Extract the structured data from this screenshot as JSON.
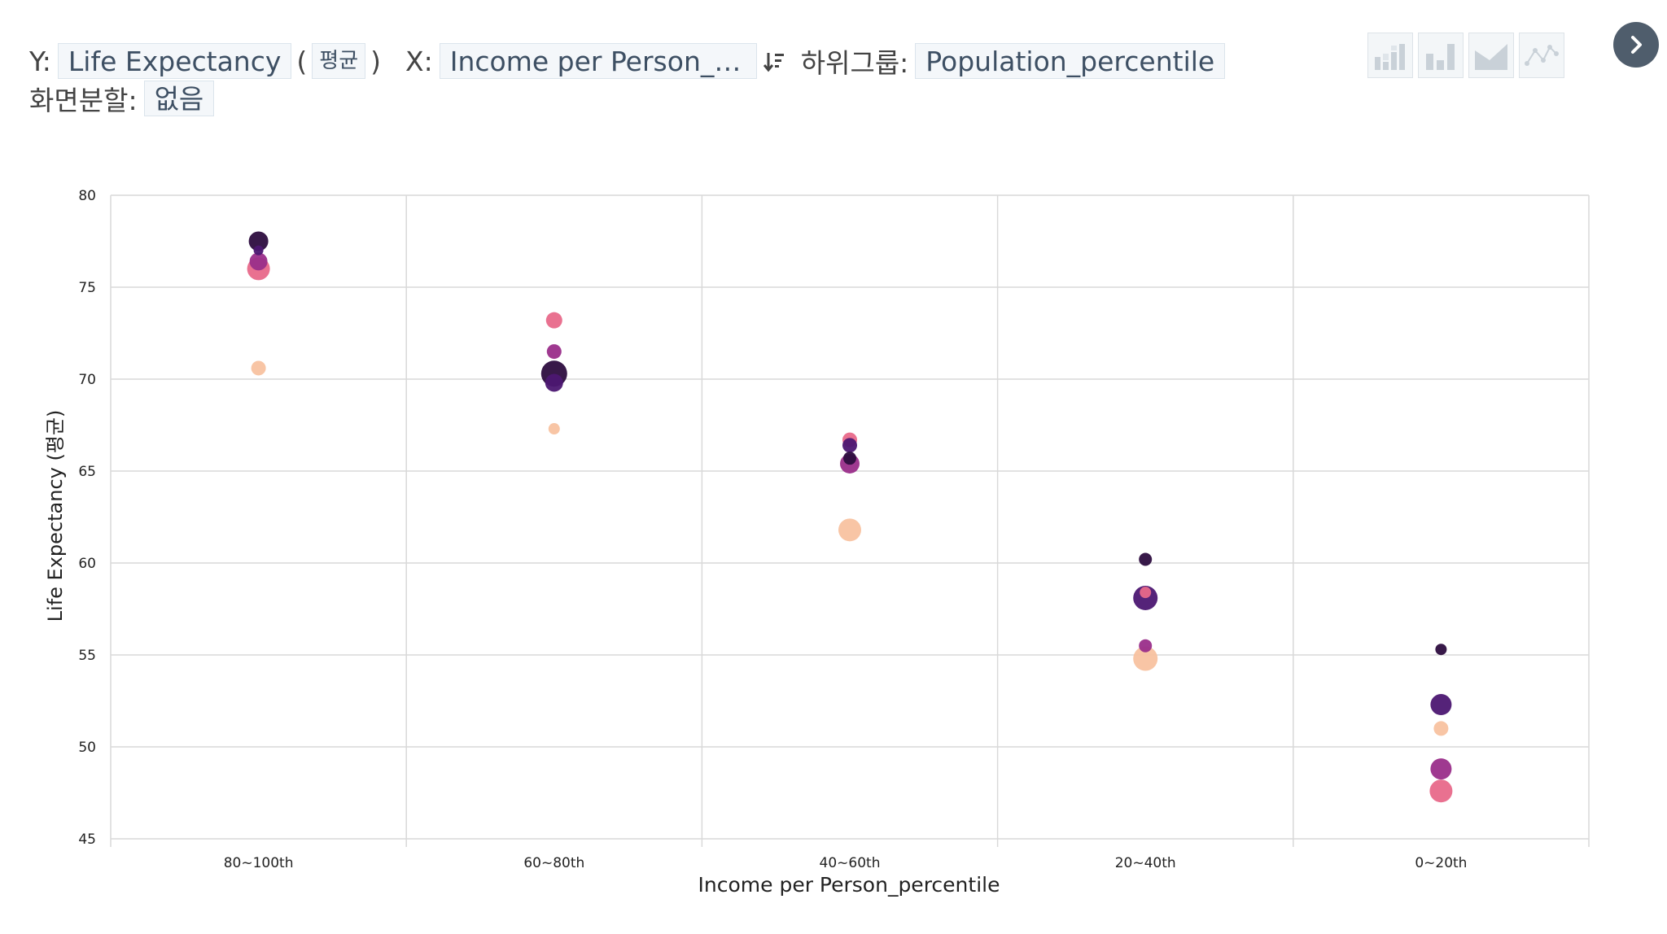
{
  "controls": {
    "y_label": "Y:",
    "y_value": "Life Expectancy",
    "agg_open": "(",
    "agg_value": "평균",
    "agg_close": ")",
    "x_label": "X:",
    "x_value": "Income per Person_p⋯",
    "subgroup_label": "하위그룹:",
    "subgroup_value": "Population_percentile",
    "split_label": "화면분할:",
    "split_value": "없음"
  },
  "chart_types": [
    "stacked-bar-icon",
    "bar-icon",
    "area-icon",
    "line-icon"
  ],
  "colors": {
    "grid": "#d9d9d9",
    "palette": [
      "#2d0d3f",
      "#4c1772",
      "#9a2e8a",
      "#e8698a",
      "#f8c2a0"
    ]
  },
  "chart_data": {
    "type": "scatter",
    "title": "",
    "xlabel": "Income per Person_percentile",
    "ylabel": "Life Expectancy (평균)",
    "ylim": [
      45,
      80
    ],
    "yticks": [
      45,
      50,
      55,
      60,
      65,
      70,
      75,
      80
    ],
    "grid": true,
    "categories": [
      "80~100th",
      "60~80th",
      "40~60th",
      "20~40th",
      "0~20th"
    ],
    "points": [
      {
        "x": "80~100th",
        "y": 77.5,
        "size": 12,
        "color": 0
      },
      {
        "x": "80~100th",
        "y": 77.0,
        "size": 6,
        "color": 1
      },
      {
        "x": "80~100th",
        "y": 76.0,
        "size": 14,
        "color": 3
      },
      {
        "x": "80~100th",
        "y": 76.4,
        "size": 11,
        "color": 2
      },
      {
        "x": "80~100th",
        "y": 70.6,
        "size": 9,
        "color": 4
      },
      {
        "x": "60~80th",
        "y": 73.2,
        "size": 10,
        "color": 3
      },
      {
        "x": "60~80th",
        "y": 71.5,
        "size": 9,
        "color": 2
      },
      {
        "x": "60~80th",
        "y": 70.3,
        "size": 16,
        "color": 0
      },
      {
        "x": "60~80th",
        "y": 69.8,
        "size": 11,
        "color": 1
      },
      {
        "x": "60~80th",
        "y": 67.3,
        "size": 7,
        "color": 4
      },
      {
        "x": "40~60th",
        "y": 66.7,
        "size": 9,
        "color": 3
      },
      {
        "x": "40~60th",
        "y": 66.4,
        "size": 9,
        "color": 1
      },
      {
        "x": "40~60th",
        "y": 65.7,
        "size": 8,
        "color": 0
      },
      {
        "x": "40~60th",
        "y": 65.4,
        "size": 12,
        "color": 2
      },
      {
        "x": "40~60th",
        "y": 61.8,
        "size": 14,
        "color": 4
      },
      {
        "x": "20~40th",
        "y": 60.2,
        "size": 8,
        "color": 0
      },
      {
        "x": "20~40th",
        "y": 58.1,
        "size": 15,
        "color": 1
      },
      {
        "x": "20~40th",
        "y": 58.4,
        "size": 7,
        "color": 3
      },
      {
        "x": "20~40th",
        "y": 55.5,
        "size": 8,
        "color": 2
      },
      {
        "x": "20~40th",
        "y": 54.8,
        "size": 15,
        "color": 4
      },
      {
        "x": "0~20th",
        "y": 55.3,
        "size": 7,
        "color": 0
      },
      {
        "x": "0~20th",
        "y": 52.3,
        "size": 13,
        "color": 1
      },
      {
        "x": "0~20th",
        "y": 51.0,
        "size": 9,
        "color": 4
      },
      {
        "x": "0~20th",
        "y": 48.8,
        "size": 13,
        "color": 2
      },
      {
        "x": "0~20th",
        "y": 47.6,
        "size": 14,
        "color": 3
      }
    ]
  }
}
